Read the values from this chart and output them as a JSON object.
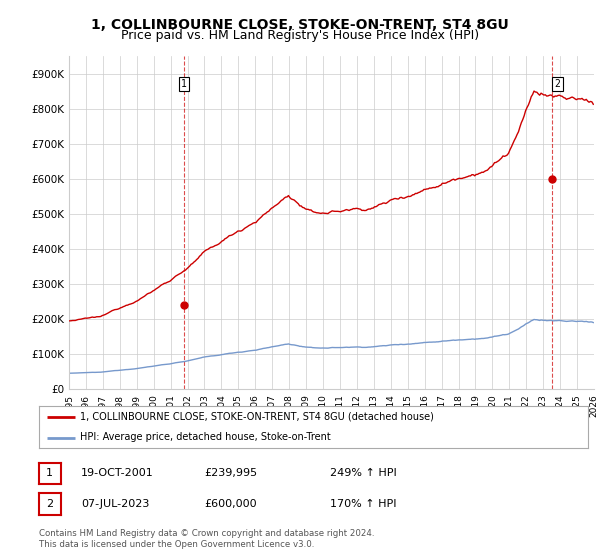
{
  "title": "1, COLLINBOURNE CLOSE, STOKE-ON-TRENT, ST4 8GU",
  "subtitle": "Price paid vs. HM Land Registry's House Price Index (HPI)",
  "ylim": [
    0,
    950000
  ],
  "yticks": [
    0,
    100000,
    200000,
    300000,
    400000,
    500000,
    600000,
    700000,
    800000,
    900000
  ],
  "ytick_labels": [
    "£0",
    "£100K",
    "£200K",
    "£300K",
    "£400K",
    "£500K",
    "£600K",
    "£700K",
    "£800K",
    "£900K"
  ],
  "hpi_color": "#7799cc",
  "price_color": "#cc0000",
  "legend_line1": "1, COLLINBOURNE CLOSE, STOKE-ON-TRENT, ST4 8GU (detached house)",
  "legend_line2": "HPI: Average price, detached house, Stoke-on-Trent",
  "table_row1": [
    "1",
    "19-OCT-2001",
    "£239,995",
    "249% ↑ HPI"
  ],
  "table_row2": [
    "2",
    "07-JUL-2023",
    "£600,000",
    "170% ↑ HPI"
  ],
  "footer": "Contains HM Land Registry data © Crown copyright and database right 2024.\nThis data is licensed under the Open Government Licence v3.0.",
  "background_color": "#ffffff",
  "grid_color": "#cccccc",
  "title_fontsize": 10,
  "subtitle_fontsize": 9
}
